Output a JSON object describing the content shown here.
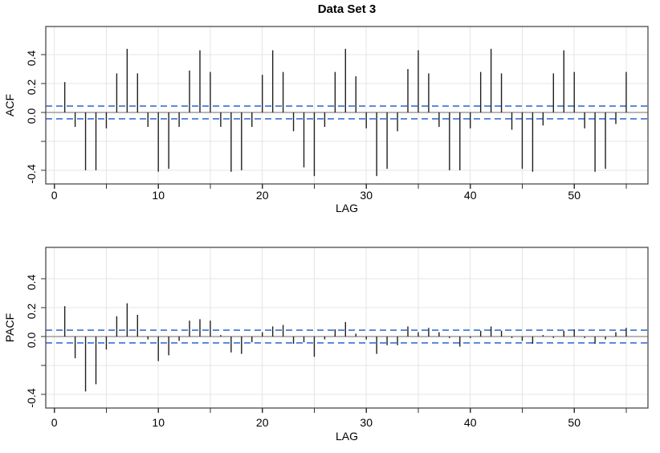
{
  "title": "Data Set 3",
  "colors": {
    "bar": "#1f1f1f",
    "zero_line": "#8a8a8a",
    "conf_line": "#3a6fd6",
    "grid": "#e4e4e4",
    "frame": "#4a4a4a",
    "tick": "#333333",
    "text": "#000000"
  },
  "chart_data": [
    {
      "type": "bar",
      "subtype": "needle-acf",
      "title": "Data Set 3",
      "xlabel": "LAG",
      "ylabel": "ACF",
      "lag_min": 1,
      "lag_max": 55,
      "values": [
        0.21,
        -0.1,
        -0.4,
        -0.4,
        -0.11,
        0.27,
        0.44,
        0.27,
        -0.1,
        -0.41,
        -0.39,
        -0.1,
        0.29,
        0.43,
        0.28,
        -0.1,
        -0.41,
        -0.4,
        -0.1,
        0.26,
        0.43,
        0.28,
        -0.13,
        -0.38,
        -0.44,
        -0.1,
        0.28,
        0.44,
        0.25,
        -0.11,
        -0.44,
        -0.39,
        -0.13,
        0.3,
        0.43,
        0.27,
        -0.1,
        -0.4,
        -0.4,
        -0.11,
        0.28,
        0.44,
        0.27,
        -0.12,
        -0.39,
        -0.41,
        -0.09,
        0.27,
        0.43,
        0.28,
        -0.11,
        -0.41,
        -0.39,
        -0.08,
        0.28
      ],
      "confidence_bounds": [
        -0.044,
        0.044
      ],
      "xlim": [
        -0.8,
        57
      ],
      "ylim": [
        -0.5,
        0.6
      ],
      "x_major_ticks": [
        0,
        10,
        20,
        30,
        40,
        50
      ],
      "x_minor_ticks": [
        5,
        15,
        25,
        35,
        45,
        55
      ],
      "y_ticks": [
        0.4,
        0.2,
        0.0,
        -0.2,
        -0.4
      ],
      "y_tick_labels": [
        "0.4",
        "0.2",
        "0.0",
        "",
        "-0.4"
      ],
      "grid": "on",
      "legend": "none"
    },
    {
      "type": "bar",
      "subtype": "needle-pacf",
      "title": "",
      "xlabel": "LAG",
      "ylabel": "PACF",
      "lag_min": 1,
      "lag_max": 55,
      "values": [
        0.21,
        -0.15,
        -0.38,
        -0.33,
        -0.09,
        0.14,
        0.23,
        0.15,
        -0.02,
        -0.17,
        -0.13,
        -0.03,
        0.11,
        0.12,
        0.11,
        0.01,
        -0.11,
        -0.12,
        -0.04,
        0.03,
        0.07,
        0.08,
        -0.05,
        -0.04,
        -0.14,
        -0.02,
        0.05,
        0.1,
        0.02,
        -0.02,
        -0.12,
        -0.06,
        -0.06,
        0.07,
        0.03,
        0.06,
        0.03,
        -0.01,
        -0.07,
        -0.01,
        0.04,
        0.07,
        0.04,
        -0.01,
        -0.03,
        -0.05,
        0.01,
        -0.01,
        0.04,
        0.05,
        -0.01,
        -0.05,
        -0.02,
        0.03,
        0.06
      ],
      "confidence_bounds": [
        -0.044,
        0.044
      ],
      "xlim": [
        -0.8,
        57
      ],
      "ylim": [
        -0.5,
        0.6
      ],
      "x_major_ticks": [
        0,
        10,
        20,
        30,
        40,
        50
      ],
      "x_minor_ticks": [
        5,
        15,
        25,
        35,
        45,
        55
      ],
      "y_ticks": [
        0.4,
        0.2,
        0.0,
        -0.2,
        -0.4
      ],
      "y_tick_labels": [
        "0.4",
        "0.2",
        "0.0",
        "",
        "-0.4"
      ],
      "grid": "on",
      "legend": "none"
    }
  ]
}
